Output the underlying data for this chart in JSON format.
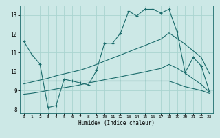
{
  "bg_color": "#cce8e6",
  "grid_color": "#aad4d0",
  "line_color": "#1a6b6b",
  "xlabel": "Humidex (Indice chaleur)",
  "x_ticks": [
    0,
    1,
    2,
    3,
    4,
    5,
    6,
    7,
    8,
    9,
    10,
    11,
    12,
    13,
    14,
    15,
    16,
    17,
    18,
    19,
    20,
    21,
    22,
    23
  ],
  "ylim": [
    7.8,
    13.5
  ],
  "xlim": [
    -0.5,
    23.5
  ],
  "yticks": [
    8,
    9,
    10,
    11,
    12,
    13
  ],
  "line1_x": [
    0,
    1,
    2,
    3,
    4,
    5,
    6,
    7,
    8,
    9,
    10,
    11,
    12,
    13,
    14,
    15,
    16,
    17,
    18,
    19,
    20,
    21,
    22,
    23
  ],
  "line1_y": [
    11.6,
    10.9,
    10.4,
    8.1,
    8.2,
    9.6,
    9.5,
    9.4,
    9.3,
    10.05,
    11.5,
    11.5,
    12.05,
    13.2,
    12.95,
    13.3,
    13.3,
    13.1,
    13.3,
    12.1,
    9.95,
    10.75,
    10.3,
    8.95
  ],
  "line2_x": [
    0,
    1,
    2,
    3,
    4,
    5,
    6,
    7,
    8,
    9,
    10,
    11,
    12,
    13,
    14,
    15,
    16,
    17,
    18,
    19,
    20,
    21,
    22,
    23
  ],
  "line2_y": [
    9.35,
    9.45,
    9.55,
    9.65,
    9.78,
    9.88,
    9.98,
    10.08,
    10.22,
    10.38,
    10.55,
    10.72,
    10.88,
    11.05,
    11.22,
    11.38,
    11.55,
    11.72,
    12.05,
    11.75,
    11.45,
    11.1,
    10.75,
    9.9
  ],
  "line3_x": [
    0,
    1,
    2,
    3,
    4,
    5,
    6,
    7,
    8,
    9,
    10,
    11,
    12,
    13,
    14,
    15,
    16,
    17,
    18,
    19,
    20,
    21,
    22,
    23
  ],
  "line3_y": [
    8.8,
    8.85,
    8.92,
    9.0,
    9.08,
    9.15,
    9.22,
    9.3,
    9.4,
    9.48,
    9.57,
    9.65,
    9.73,
    9.82,
    9.9,
    9.98,
    10.08,
    10.17,
    10.38,
    10.18,
    9.92,
    9.62,
    9.32,
    8.92
  ],
  "line4_x": [
    0,
    1,
    2,
    3,
    4,
    5,
    6,
    7,
    8,
    9,
    10,
    11,
    12,
    13,
    14,
    15,
    16,
    17,
    18,
    19,
    20,
    21,
    22,
    23
  ],
  "line4_y": [
    9.5,
    9.5,
    9.5,
    9.5,
    9.5,
    9.5,
    9.5,
    9.5,
    9.5,
    9.5,
    9.5,
    9.5,
    9.5,
    9.5,
    9.5,
    9.5,
    9.5,
    9.5,
    9.5,
    9.35,
    9.2,
    9.1,
    9.0,
    8.85
  ]
}
